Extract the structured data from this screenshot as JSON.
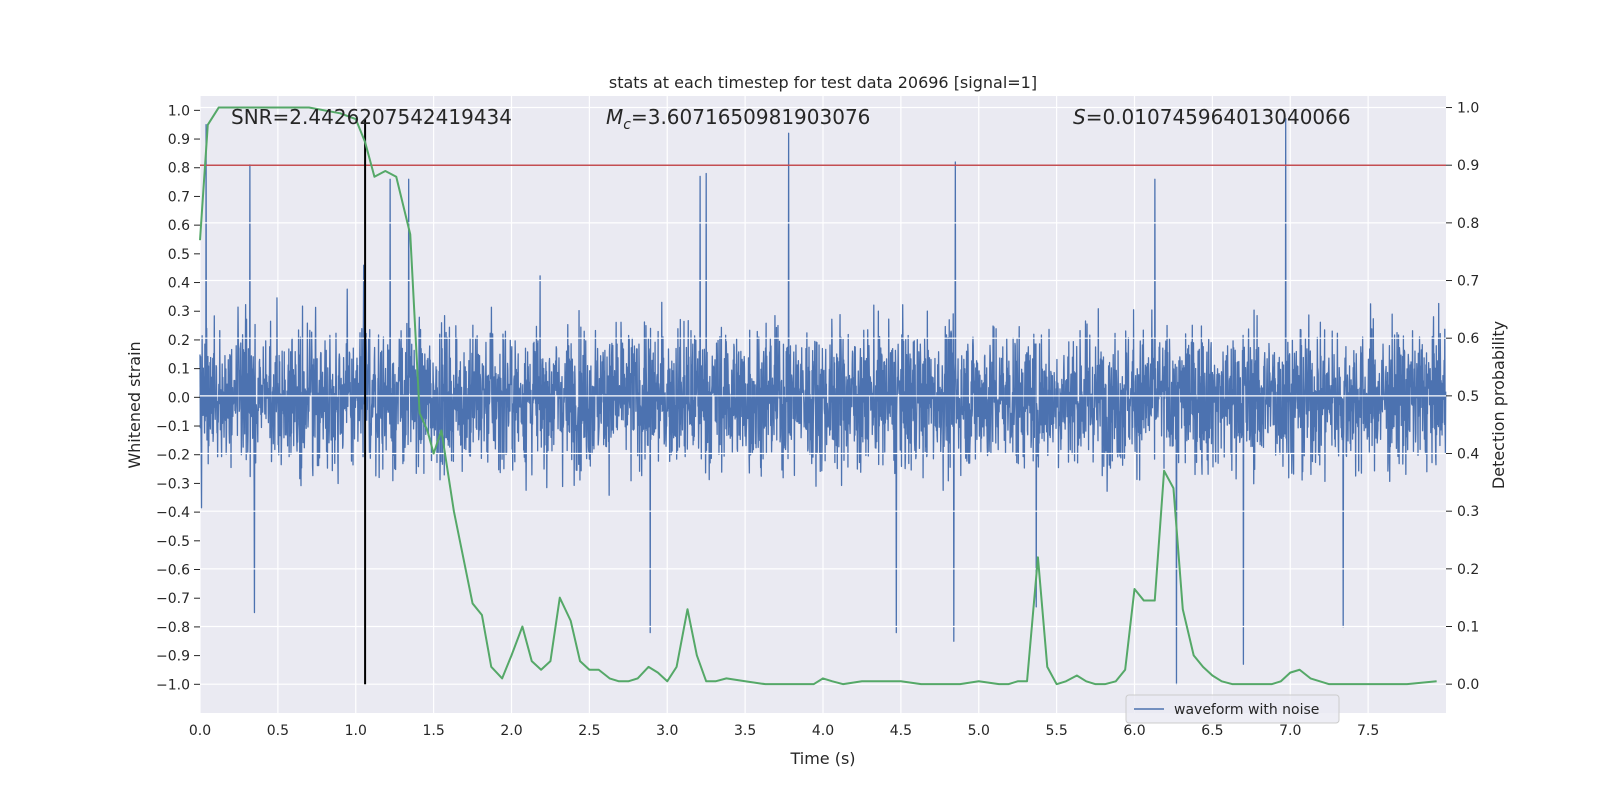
{
  "chart_data": {
    "type": "line",
    "title": "stats at each timestep for test data 20696 [signal=1]",
    "xlabel": "Time (s)",
    "ylabel_left": "Whitened strain",
    "ylabel_right": "Detection probability",
    "xlim": [
      0,
      8
    ],
    "ylim_left": [
      -1.1,
      1.05
    ],
    "ylim_right": [
      -0.05,
      1.02
    ],
    "x_ticks": [
      "0.0",
      "0.5",
      "1.0",
      "1.5",
      "2.0",
      "2.5",
      "3.0",
      "3.5",
      "4.0",
      "4.5",
      "5.0",
      "5.5",
      "6.0",
      "6.5",
      "7.0",
      "7.5"
    ],
    "y_left_ticks": [
      "1.0",
      "0.9",
      "0.8",
      "0.7",
      "0.6",
      "0.5",
      "0.4",
      "0.3",
      "0.2",
      "0.1",
      "0.0",
      "-0.1",
      "-0.2",
      "-0.3",
      "-0.4",
      "-0.5",
      "-0.6",
      "-0.7",
      "-0.8",
      "-0.9",
      "-1.0"
    ],
    "y_right_ticks": [
      "0.0",
      "0.1",
      "0.2",
      "0.3",
      "0.4",
      "0.5",
      "0.6",
      "0.7",
      "0.8",
      "0.9",
      "1.0"
    ],
    "threshold": {
      "value": 0.9,
      "axis": "right",
      "color": "#c44e52"
    },
    "event_marker": {
      "x": 1.06,
      "y_from": -1.0,
      "y_to": 0.97,
      "color": "#000000"
    },
    "annotations": {
      "snr_label": "SNR=2.4426207542419434",
      "mc_symbol": "M",
      "mc_subscript": "c",
      "mc_value": "=3.6071650981903076",
      "s_symbol": "S",
      "s_value": "=0.010745964013040066"
    },
    "legend": {
      "label": "waveform with noise",
      "position": "bottom-right"
    },
    "series": [
      {
        "name": "waveform with noise",
        "axis": "left",
        "color": "#4c72b0",
        "style": "dense noise, amplitude mostly within ±0.4 with spikes to about ±1.0",
        "notable_spikes": [
          [
            0.04,
            0.95
          ],
          [
            0.32,
            0.81
          ],
          [
            0.35,
            -0.75
          ],
          [
            1.05,
            0.46
          ],
          [
            1.22,
            0.76
          ],
          [
            1.34,
            0.76
          ],
          [
            2.89,
            -0.82
          ],
          [
            3.21,
            0.77
          ],
          [
            3.25,
            0.78
          ],
          [
            3.78,
            0.92
          ],
          [
            4.47,
            -0.82
          ],
          [
            4.85,
            0.82
          ],
          [
            4.84,
            -0.85
          ],
          [
            5.37,
            -0.73
          ],
          [
            6.13,
            0.76
          ],
          [
            6.27,
            -1.0
          ],
          [
            6.7,
            -0.93
          ],
          [
            6.97,
            0.97
          ],
          [
            7.34,
            -0.8
          ]
        ]
      },
      {
        "name": "Detection probability",
        "axis": "right",
        "color": "#55a868",
        "x": [
          0,
          0.05,
          0.12,
          0.3,
          0.5,
          0.7,
          0.9,
          1.0,
          1.06,
          1.12,
          1.19,
          1.26,
          1.35,
          1.41,
          1.46,
          1.5,
          1.55,
          1.63,
          1.75,
          1.81,
          1.87,
          1.94,
          2.0,
          2.07,
          2.13,
          2.19,
          2.25,
          2.31,
          2.38,
          2.44,
          2.5,
          2.56,
          2.63,
          2.69,
          2.75,
          2.81,
          2.88,
          2.94,
          3.0,
          3.06,
          3.13,
          3.19,
          3.25,
          3.31,
          3.38,
          3.5,
          3.63,
          3.75,
          3.88,
          3.94,
          4.0,
          4.06,
          4.13,
          4.25,
          4.38,
          4.5,
          4.63,
          4.75,
          4.88,
          5.0,
          5.13,
          5.19,
          5.25,
          5.31,
          5.38,
          5.44,
          5.5,
          5.56,
          5.63,
          5.69,
          5.75,
          5.81,
          5.88,
          5.94,
          6.0,
          6.06,
          6.13,
          6.19,
          6.25,
          6.31,
          6.38,
          6.44,
          6.5,
          6.56,
          6.63,
          6.75,
          6.88,
          6.94,
          7.0,
          7.06,
          7.13,
          7.25,
          7.5,
          7.75,
          7.94
        ],
        "values": [
          0.77,
          0.97,
          1.0,
          1.0,
          1.0,
          1.0,
          0.99,
          0.98,
          0.94,
          0.88,
          0.89,
          0.88,
          0.78,
          0.47,
          0.44,
          0.4,
          0.44,
          0.3,
          0.14,
          0.12,
          0.03,
          0.01,
          0.05,
          0.1,
          0.04,
          0.025,
          0.04,
          0.15,
          0.11,
          0.04,
          0.025,
          0.025,
          0.01,
          0.005,
          0.005,
          0.01,
          0.03,
          0.02,
          0.005,
          0.03,
          0.13,
          0.05,
          0.005,
          0.005,
          0.01,
          0.005,
          0.0,
          0.0,
          0.0,
          0.0,
          0.01,
          0.005,
          0.0,
          0.005,
          0.005,
          0.005,
          0.0,
          0.0,
          0.0,
          0.005,
          0.0,
          0.0,
          0.005,
          0.005,
          0.22,
          0.03,
          0.0,
          0.005,
          0.015,
          0.005,
          0.0,
          0.0,
          0.005,
          0.025,
          0.165,
          0.145,
          0.145,
          0.37,
          0.34,
          0.13,
          0.05,
          0.03,
          0.015,
          0.005,
          0.0,
          0.0,
          0.0,
          0.005,
          0.02,
          0.025,
          0.01,
          0.0,
          0.0,
          0.0,
          0.005
        ]
      }
    ]
  }
}
